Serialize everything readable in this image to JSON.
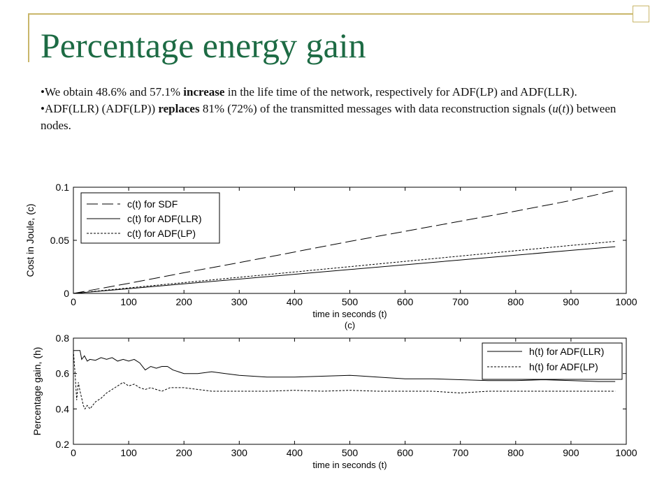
{
  "slide": {
    "title": "Percentage energy gain",
    "bullets": [
      {
        "pre": "We obtain 48.6% and 57.1% ",
        "strong": "increase",
        "post": " in the life time of the network, respectively for ADF(LP) and ADF(LLR)."
      },
      {
        "pre": "ADF(LLR) (ADF(LP)) ",
        "strong": "replaces",
        "post": " 81% (72%) of the transmitted messages with data reconstruction signals (",
        "u": "u",
        "paren_open": "(",
        "t": "t",
        "tail": ")) between nodes."
      }
    ],
    "bullet_char": "•"
  },
  "chart_data": [
    {
      "type": "line",
      "title": "",
      "xlabel": "time in seconds (t)",
      "ylabel": "Cost in Joule, (c)",
      "xlim": [
        0,
        1000
      ],
      "ylim": [
        0,
        0.1
      ],
      "xticks": [
        "0",
        "100",
        "200",
        "300",
        "400",
        "500",
        "600",
        "700",
        "800",
        "900",
        "1000"
      ],
      "yticks": [
        "0",
        "0.05",
        "0.1"
      ],
      "legend_position": "top-left",
      "series": [
        {
          "name": "c(t) for SDF",
          "style": "dash",
          "x": [
            0,
            100,
            200,
            300,
            400,
            500,
            600,
            700,
            800,
            900,
            980
          ],
          "values": [
            0,
            0.0095,
            0.0195,
            0.029,
            0.039,
            0.049,
            0.0585,
            0.068,
            0.0775,
            0.0875,
            0.097
          ]
        },
        {
          "name": "c(t) for ADF(LLR)",
          "style": "solid",
          "x": [
            0,
            100,
            200,
            300,
            400,
            500,
            600,
            700,
            800,
            900,
            980
          ],
          "values": [
            0,
            0.0045,
            0.009,
            0.0135,
            0.018,
            0.0225,
            0.027,
            0.0315,
            0.036,
            0.0405,
            0.044
          ]
        },
        {
          "name": "c(t) for ADF(LP)",
          "style": "dot",
          "x": [
            0,
            100,
            200,
            300,
            400,
            500,
            600,
            700,
            800,
            900,
            980
          ],
          "values": [
            0,
            0.0052,
            0.0102,
            0.0152,
            0.0202,
            0.0252,
            0.0302,
            0.0352,
            0.0402,
            0.0452,
            0.049
          ]
        }
      ]
    },
    {
      "type": "line",
      "title": "(c)",
      "xlabel": "time in seconds (t)",
      "ylabel": "Percentage gain, (h)",
      "xlim": [
        0,
        1000
      ],
      "ylim": [
        0.2,
        0.8
      ],
      "xticks": [
        "0",
        "100",
        "200",
        "300",
        "400",
        "500",
        "600",
        "700",
        "800",
        "900",
        "1000"
      ],
      "yticks": [
        "0.2",
        "0.4",
        "0.6",
        "0.8"
      ],
      "legend_position": "top-right",
      "series": [
        {
          "name": "h(t) for ADF(LLR)",
          "style": "solid",
          "x": [
            0,
            5,
            12,
            15,
            20,
            25,
            30,
            40,
            50,
            60,
            70,
            80,
            90,
            100,
            110,
            120,
            130,
            140,
            150,
            160,
            170,
            180,
            190,
            200,
            225,
            250,
            275,
            300,
            350,
            400,
            450,
            500,
            550,
            600,
            650,
            700,
            750,
            800,
            850,
            900,
            950,
            980
          ],
          "values": [
            0.73,
            0.73,
            0.73,
            0.68,
            0.7,
            0.67,
            0.68,
            0.675,
            0.69,
            0.68,
            0.69,
            0.67,
            0.68,
            0.67,
            0.68,
            0.66,
            0.62,
            0.64,
            0.63,
            0.64,
            0.64,
            0.62,
            0.61,
            0.6,
            0.6,
            0.61,
            0.6,
            0.59,
            0.58,
            0.58,
            0.585,
            0.59,
            0.58,
            0.57,
            0.57,
            0.565,
            0.56,
            0.56,
            0.565,
            0.56,
            0.555,
            0.555
          ]
        },
        {
          "name": "h(t) for ADF(LP)",
          "style": "dot",
          "x": [
            0,
            3,
            6,
            9,
            12,
            15,
            18,
            21,
            25,
            30,
            40,
            50,
            60,
            70,
            80,
            90,
            100,
            110,
            120,
            130,
            140,
            150,
            160,
            175,
            200,
            225,
            250,
            275,
            300,
            350,
            400,
            450,
            500,
            550,
            600,
            650,
            700,
            750,
            800,
            850,
            900,
            950,
            980
          ],
          "values": [
            0.73,
            0.6,
            0.45,
            0.55,
            0.5,
            0.46,
            0.42,
            0.4,
            0.42,
            0.4,
            0.44,
            0.46,
            0.49,
            0.51,
            0.53,
            0.55,
            0.53,
            0.54,
            0.52,
            0.51,
            0.52,
            0.51,
            0.5,
            0.52,
            0.52,
            0.51,
            0.5,
            0.5,
            0.5,
            0.5,
            0.505,
            0.5,
            0.505,
            0.5,
            0.5,
            0.5,
            0.49,
            0.5,
            0.5,
            0.5,
            0.5,
            0.5,
            0.5
          ]
        }
      ]
    }
  ]
}
